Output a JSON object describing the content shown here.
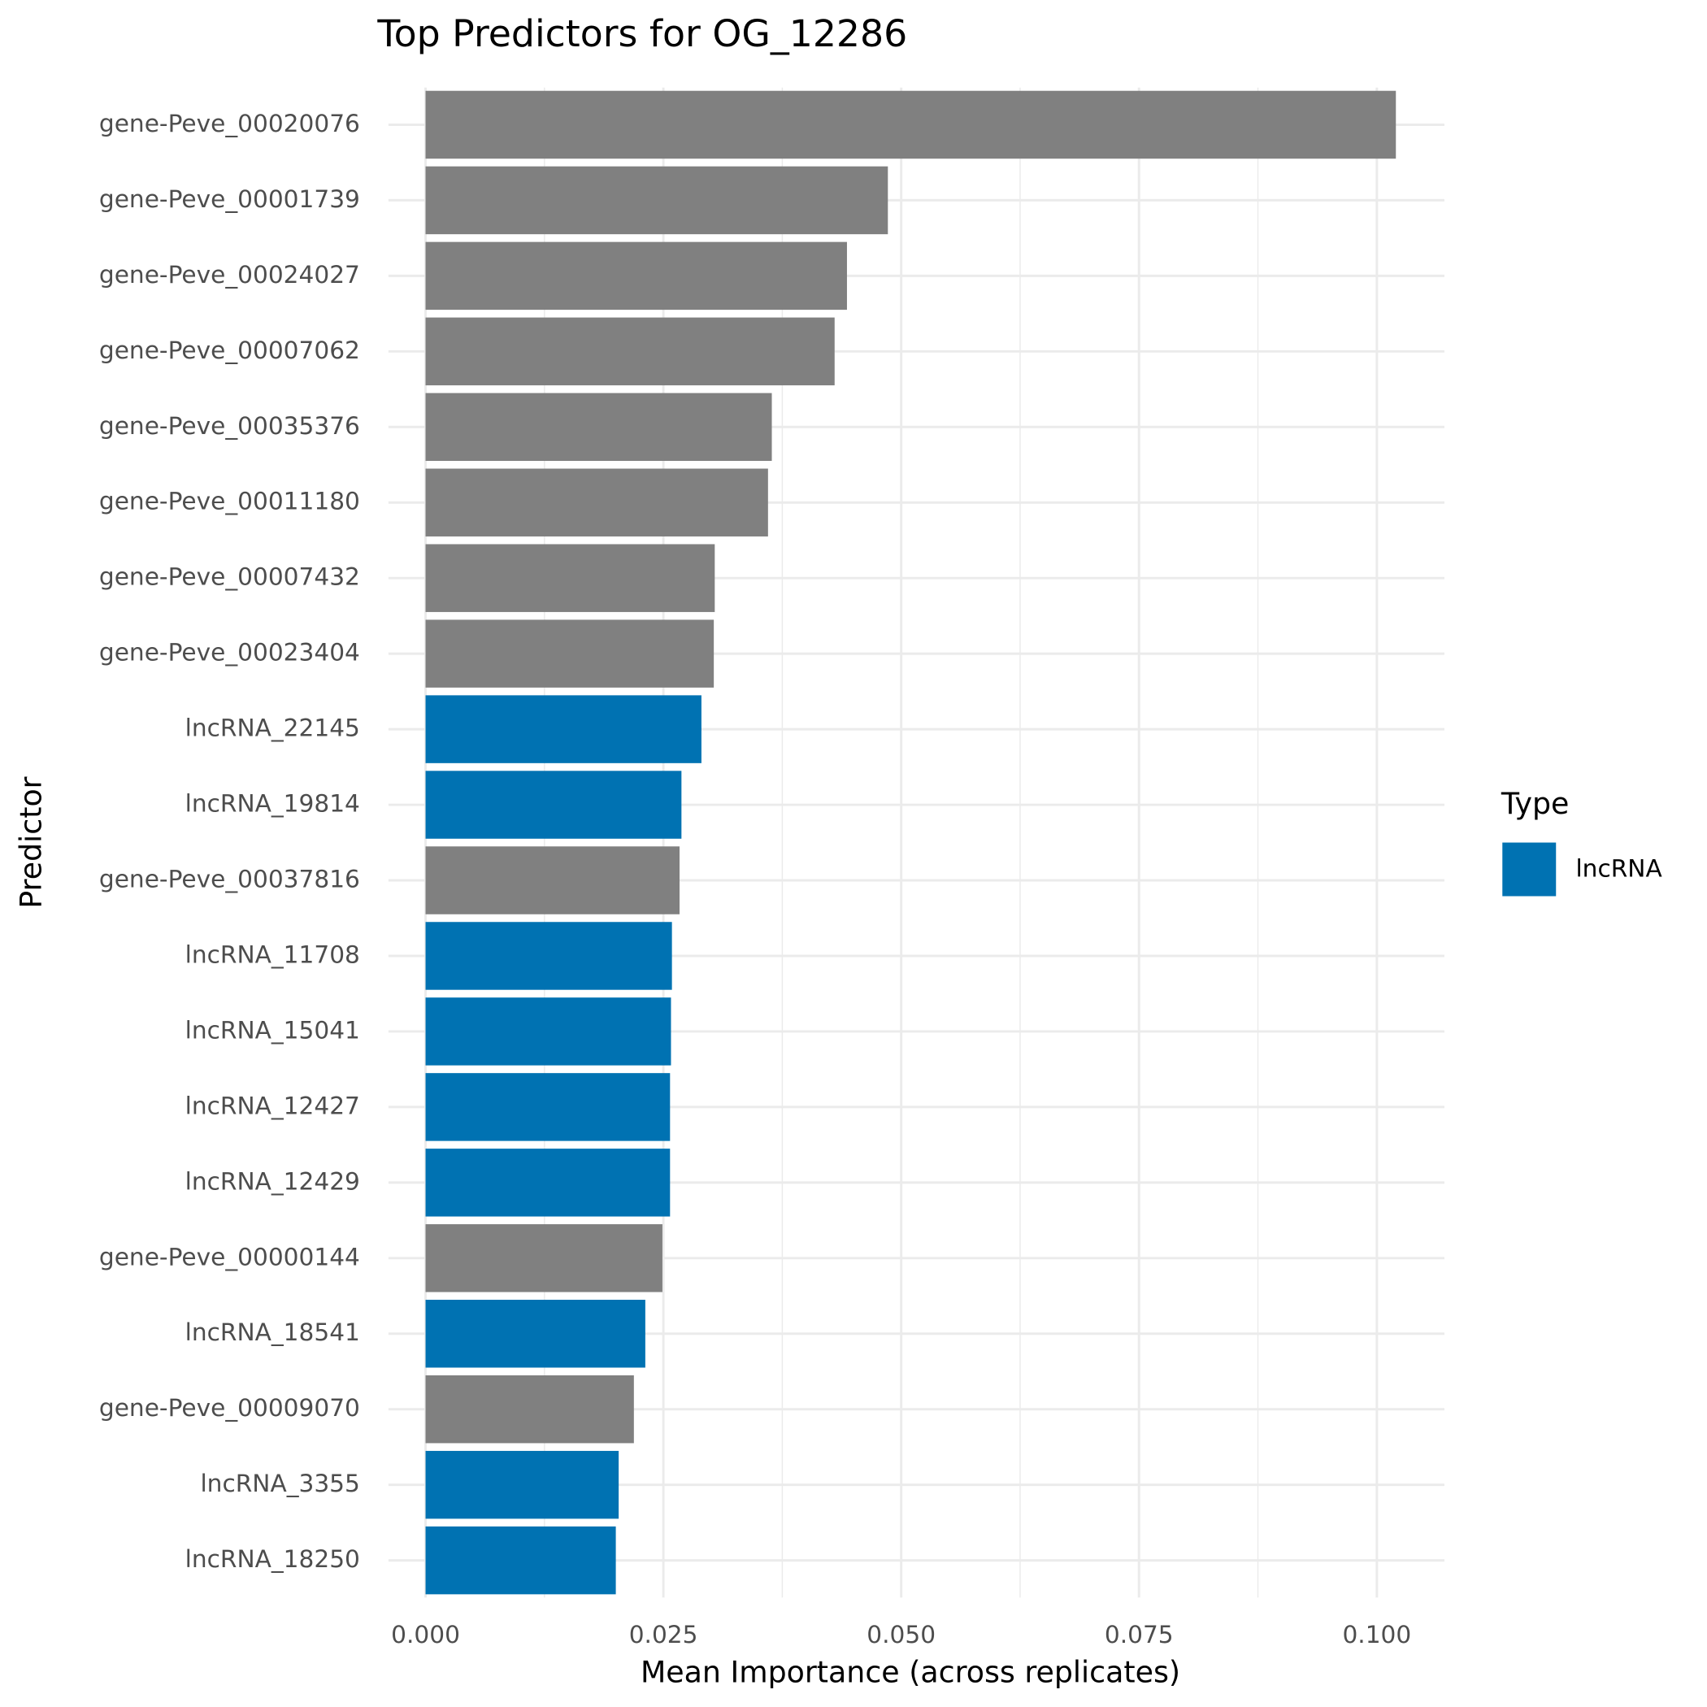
{
  "chart_data": {
    "type": "barh",
    "title": "Top Predictors for OG_12286",
    "x_label": "Mean Importance (across replicates)",
    "y_label": "Predictor",
    "categories": [
      "gene-Peve_00020076",
      "gene-Peve_00001739",
      "gene-Peve_00024027",
      "gene-Peve_00007062",
      "gene-Peve_00035376",
      "gene-Peve_00011180",
      "gene-Peve_00007432",
      "gene-Peve_00023404",
      "lncRNA_22145",
      "lncRNA_19814",
      "gene-Peve_00037816",
      "lncRNA_11708",
      "lncRNA_15041",
      "lncRNA_12427",
      "lncRNA_12429",
      "gene-Peve_00000144",
      "lncRNA_18541",
      "gene-Peve_00009070",
      "lncRNA_3355",
      "lncRNA_18250"
    ],
    "values": [
      0.102,
      0.0486,
      0.0443,
      0.043,
      0.0364,
      0.036,
      0.0304,
      0.0303,
      0.029,
      0.0269,
      0.0267,
      0.0259,
      0.0258,
      0.0257,
      0.0257,
      0.0249,
      0.0231,
      0.0219,
      0.0203,
      0.02
    ],
    "colors": [
      "#808080",
      "#808080",
      "#808080",
      "#808080",
      "#808080",
      "#808080",
      "#808080",
      "#808080",
      "#0072B2",
      "#0072B2",
      "#808080",
      "#0072B2",
      "#0072B2",
      "#0072B2",
      "#0072B2",
      "#808080",
      "#0072B2",
      "#808080",
      "#0072B2",
      "#0072B2"
    ],
    "xlim": [
      -0.0039,
      0.1071
    ],
    "xticks": [
      {
        "value": 0,
        "label": "0.000"
      },
      {
        "value": 0.025,
        "label": "0.025"
      },
      {
        "value": 0.05,
        "label": "0.050"
      },
      {
        "value": 0.075,
        "label": "0.075"
      },
      {
        "value": 0.1,
        "label": "0.100"
      }
    ],
    "minor_xticks": [
      0.0125,
      0.0375,
      0.0625,
      0.0875
    ],
    "grid": true,
    "legend": {
      "title": "Type",
      "position": "right",
      "entries": [
        {
          "label": "lncRNA",
          "color": "#0072B2"
        }
      ]
    }
  }
}
